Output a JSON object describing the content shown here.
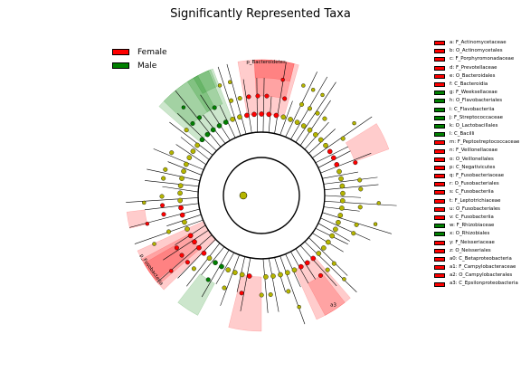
{
  "chart_data": {
    "type": "cladogram",
    "title": "Significantly Represented Taxa",
    "groups": [
      {
        "name": "Female",
        "color": "#ff0000"
      },
      {
        "name": "Male",
        "color": "#008000"
      }
    ],
    "highlighted_taxa": [
      {
        "key": "a",
        "name": "F_Actinomycetaceae",
        "group": "Female"
      },
      {
        "key": "b",
        "name": "O_Actinomycetales",
        "group": "Female"
      },
      {
        "key": "c",
        "name": "F_Porphyromonadaceae",
        "group": "Female"
      },
      {
        "key": "d",
        "name": "F_Prevotellaceae",
        "group": "Female"
      },
      {
        "key": "e",
        "name": "O_Bacteroidales",
        "group": "Female"
      },
      {
        "key": "f",
        "name": "C_Bacteroidia",
        "group": "Female"
      },
      {
        "key": "g",
        "name": "F_Weeksellaceae",
        "group": "Male"
      },
      {
        "key": "h",
        "name": "O_Flavobacteriales",
        "group": "Male"
      },
      {
        "key": "i",
        "name": "C_Flavobacteriia",
        "group": "Male"
      },
      {
        "key": "j",
        "name": "F_Streptococcaceae",
        "group": "Male"
      },
      {
        "key": "k",
        "name": "O_Lactobacillales",
        "group": "Male"
      },
      {
        "key": "l",
        "name": "C_Bacilli",
        "group": "Male"
      },
      {
        "key": "m",
        "name": "F_Peptostreptococcaceae",
        "group": "Female"
      },
      {
        "key": "n",
        "name": "F_Veillonellaceae",
        "group": "Female"
      },
      {
        "key": "o",
        "name": "O_Veillonellales",
        "group": "Female"
      },
      {
        "key": "p",
        "name": "C_Negativicutes",
        "group": "Female"
      },
      {
        "key": "q",
        "name": "F_Fusobacteriaceae",
        "group": "Female"
      },
      {
        "key": "r",
        "name": "O_Fusobacteriales",
        "group": "Female"
      },
      {
        "key": "s",
        "name": "C_Fusobacteriia",
        "group": "Female"
      },
      {
        "key": "t",
        "name": "F_Leptotrichiaceae",
        "group": "Female"
      },
      {
        "key": "u",
        "name": "O_Fusobacteriales",
        "group": "Female"
      },
      {
        "key": "v",
        "name": "C_Fusobacteriia",
        "group": "Female"
      },
      {
        "key": "w",
        "name": "F_Rhizobiaceae",
        "group": "Male"
      },
      {
        "key": "x",
        "name": "O_Rhizobiales",
        "group": "Male"
      },
      {
        "key": "y",
        "name": "F_Neisseriaceae",
        "group": "Female"
      },
      {
        "key": "z",
        "name": "O_Neisseriales",
        "group": "Female"
      },
      {
        "key": "a0",
        "name": "C_Betaproteobacteria",
        "group": "Female"
      },
      {
        "key": "a1",
        "name": "F_Campylobacteraceae",
        "group": "Female"
      },
      {
        "key": "a2",
        "name": "O_Campylobacterales",
        "group": "Female"
      },
      {
        "key": "a3",
        "name": "C_Epsilonproteobacteria",
        "group": "Female"
      }
    ],
    "sector_labels": [
      {
        "text": "p_Bacteroidetes"
      },
      {
        "text": "p_Fusobacteria"
      },
      {
        "text": "a3"
      }
    ]
  }
}
